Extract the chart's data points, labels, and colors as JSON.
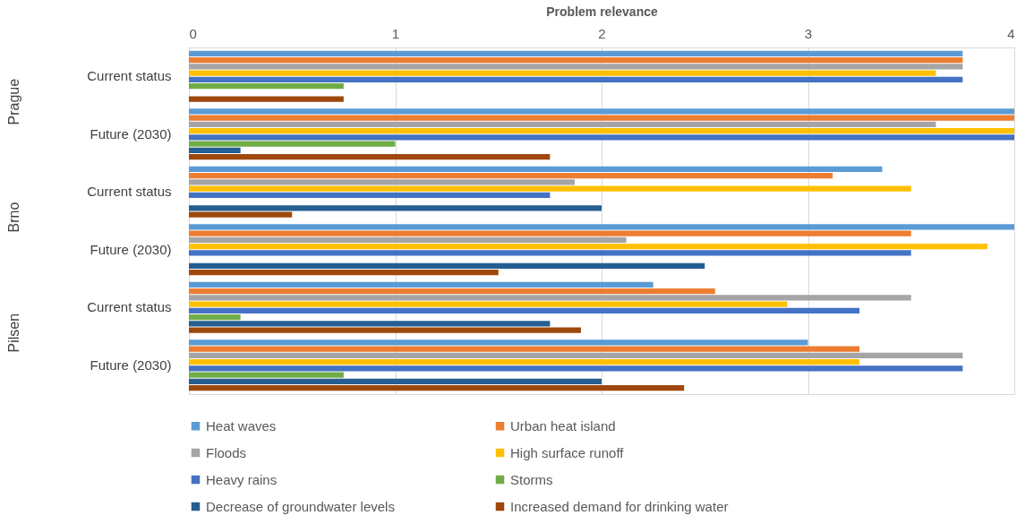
{
  "chart_data": {
    "type": "bar",
    "orientation": "horizontal",
    "xlabel": "Problem relevance",
    "categories": [
      "Current status",
      "Future (2030)",
      "Current status",
      "Future (2030)",
      "Current status",
      "Future (2030)"
    ],
    "annotations": [
      "Prague",
      "Brno",
      "Pilsen"
    ],
    "xlim": [
      0,
      4
    ],
    "xticks": [
      0,
      1,
      2,
      3,
      4
    ],
    "grid": "x",
    "legend": "bottom",
    "series": [
      {
        "name": "Heat waves",
        "color": "#5b9bd5",
        "values": [
          3.75,
          4,
          3.36,
          4,
          2.25,
          3
        ]
      },
      {
        "name": "Urban heat island",
        "color": "#ed7d31",
        "values": [
          3.75,
          4,
          3.12,
          3.5,
          2.55,
          3.25
        ]
      },
      {
        "name": "Floods",
        "color": "#a5a5a5",
        "values": [
          3.75,
          3.62,
          1.87,
          2.12,
          3.5,
          3.75
        ]
      },
      {
        "name": "High surface runoff",
        "color": "#ffc000",
        "values": [
          3.62,
          4,
          3.5,
          3.87,
          2.9,
          3.25
        ]
      },
      {
        "name": "Heavy rains",
        "color": "#4472c4",
        "values": [
          3.75,
          4,
          1.75,
          3.5,
          3.25,
          3.75
        ]
      },
      {
        "name": "Storms",
        "color": "#70ad47",
        "values": [
          0.75,
          1,
          null,
          null,
          0.25,
          0.75
        ]
      },
      {
        "name": "Decrease of groundwater levels",
        "color": "#255e91",
        "values": [
          null,
          0.25,
          2,
          2.5,
          1.75,
          2
        ]
      },
      {
        "name": "Increased demand for drinking water",
        "color": "#9e480e",
        "values": [
          0.75,
          1.75,
          0.5,
          1.5,
          1.9,
          2.4
        ]
      }
    ]
  }
}
